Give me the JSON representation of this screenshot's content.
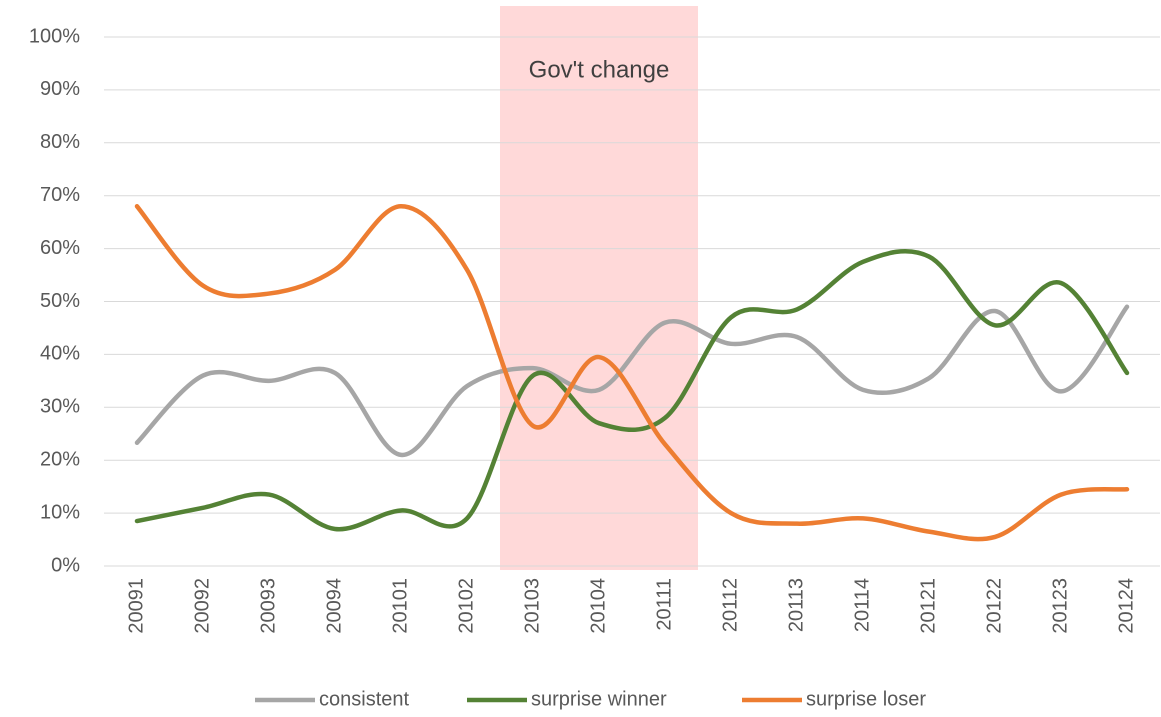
{
  "chart_data": {
    "type": "line",
    "categories": [
      "20091",
      "20092",
      "20093",
      "20094",
      "20101",
      "20102",
      "20103",
      "20104",
      "20111",
      "20112",
      "20113",
      "20114",
      "20121",
      "20122",
      "20123",
      "20124"
    ],
    "series": [
      {
        "name": "consistent",
        "color": "#a6a6a6",
        "values": [
          23.3,
          36,
          35,
          36.5,
          21,
          34,
          37.4,
          33.3,
          46,
          42,
          43.3,
          33.3,
          35.5,
          48.2,
          33,
          49
        ]
      },
      {
        "name": "surprise winner",
        "color": "#548235",
        "values": [
          8.5,
          11,
          13.5,
          7,
          10.5,
          9,
          36,
          27,
          28,
          47,
          48.5,
          57.5,
          58.5,
          45.5,
          53.5,
          36.5
        ]
      },
      {
        "name": "surprise loser",
        "color": "#ed7d31",
        "values": [
          68,
          53,
          51.5,
          56,
          68,
          56,
          26.5,
          39.5,
          23,
          10,
          8,
          9,
          6.5,
          5.5,
          13.5,
          14.5
        ]
      }
    ],
    "ylim": [
      0,
      100
    ],
    "yticks": [
      {
        "value": 0,
        "label": "0%"
      },
      {
        "value": 10,
        "label": "10%"
      },
      {
        "value": 20,
        "label": "20%"
      },
      {
        "value": 30,
        "label": "30%"
      },
      {
        "value": 40,
        "label": "40%"
      },
      {
        "value": 50,
        "label": "50%"
      },
      {
        "value": 60,
        "label": "60%"
      },
      {
        "value": 70,
        "label": "70%"
      },
      {
        "value": 80,
        "label": "80%"
      },
      {
        "value": 90,
        "label": "90%"
      },
      {
        "value": 100,
        "label": "100%"
      }
    ],
    "grid": true,
    "smooth": true,
    "legend": "bottom",
    "shaded_region": {
      "label": "Gov't change",
      "from": "20103",
      "to": "20111",
      "color": "#ffd9d9"
    }
  }
}
